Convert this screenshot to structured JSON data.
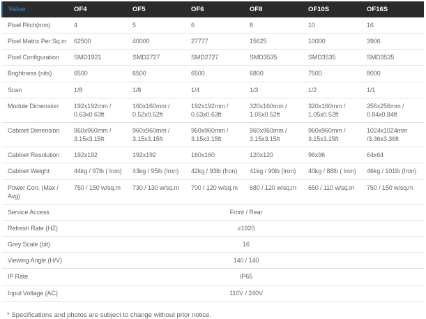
{
  "table": {
    "header": {
      "value_label": "Value",
      "models": [
        "OF4",
        "OF5",
        "OF6",
        "OF8",
        "OF10S",
        "OF16S"
      ]
    },
    "rows": [
      {
        "label": "Pixel Pitch(mm)",
        "values": [
          "4",
          "5",
          "6",
          "8",
          "10",
          "16"
        ]
      },
      {
        "label": "Pixel Matrix Per Sq.m",
        "values": [
          "62500",
          "40000",
          "27777",
          "15625",
          "10000",
          "3906"
        ]
      },
      {
        "label": "Pixel Configuration",
        "values": [
          "SMD1921",
          "SMD2727",
          "SMD2727",
          "SMD3535",
          "SMD3535",
          "SMD3535"
        ]
      },
      {
        "label": "Brightness (nits)",
        "values": [
          "6500",
          "6500",
          "6500",
          "6800",
          "7500",
          "8000"
        ]
      },
      {
        "label": "Scan",
        "values": [
          "1/8",
          "1/8",
          "1/4",
          "1/3",
          "1/2",
          "1/1"
        ]
      },
      {
        "label": "Module Dimension",
        "values": [
          "192x192mm / 0.63x0.63ft",
          "160x160mm / 0.52x0.52ft",
          "192x192mm / 0.63x0.63ft",
          "320x160mm / 1.05x0.52ft",
          "320x160mm / 1.05x0.52ft",
          "256x256mm / 0.84x0.84ft"
        ]
      },
      {
        "label": "Cabinet Dimension",
        "values": [
          "960x960mm / 3.15x3.15ft",
          "960x960mm / 3.15x3.15ft",
          "960x960mm / 3.15x3.15ft",
          "960x960mm / 3.15x3.15ft",
          "960x960mm / 3.15x3.15ft",
          "1024x1024mm /3.36x3.36ft"
        ]
      },
      {
        "label": "Cabinet Resolution",
        "values": [
          "192x192",
          "192x192",
          "160x160",
          "120x120",
          "96x96",
          "64x64"
        ]
      },
      {
        "label": "Cabinet Weight",
        "values": [
          "44kg / 97lb ( Iron)",
          "43kg / 95lb (Iron)",
          "42kg / 93lb (Iron)",
          "41kg / 90lb (Iron)",
          "40kg / 88lb ( Iron)",
          "46kg / 101lb (Iron)"
        ]
      },
      {
        "label": "Power Con. (Max / Avg)",
        "values": [
          "750 / 150 w/sq.m",
          "730 / 130 w/sq.m",
          "700 / 120 w/sq.m",
          "680 / 120 w/sq.m",
          "650 / 110 w/sq.m",
          "750 / 150 w/sq.m"
        ]
      }
    ],
    "merged_rows": [
      {
        "label": "Service Access",
        "value": "Front / Rear"
      },
      {
        "label": "Refresh Rate (HZ)",
        "value": "≥1920"
      },
      {
        "label": "Grey Scale (bit)",
        "value": "16"
      },
      {
        "label": "Viewing Angle (H/V)",
        "value": "140 / 140"
      },
      {
        "label": "IP Rate",
        "value": "IP65"
      },
      {
        "label": "Input Voltage (AC)",
        "value": "110V / 240V"
      }
    ]
  },
  "footnote": "* Specifications and photos are subject to change without prior notice.",
  "colors": {
    "header_bg": "#2b2b2b",
    "header_text": "#ffffff",
    "value_link_blue": "#2e77b5",
    "header_left_accent": "#1e5c8f",
    "body_text": "#666666",
    "row_border": "#e3e3e3"
  }
}
